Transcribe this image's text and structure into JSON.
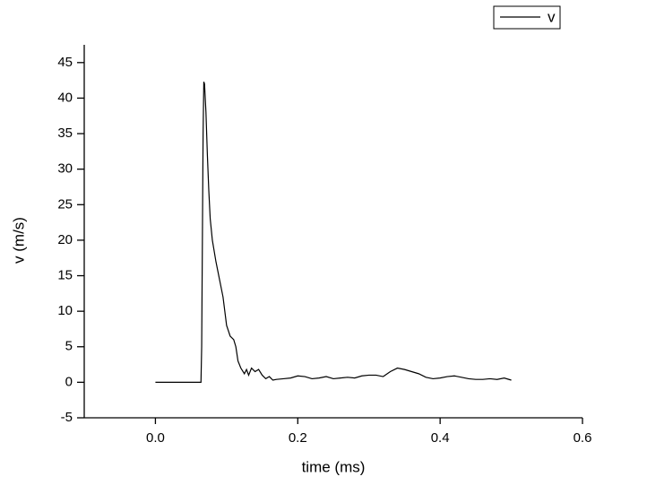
{
  "chart_data": {
    "type": "line",
    "xlabel": "time (ms)",
    "ylabel": "v (m/s)",
    "xlim": [
      -0.1,
      0.6
    ],
    "ylim": [
      -5,
      47.5
    ],
    "xticks": [
      {
        "value": 0,
        "label": "0.0"
      },
      0.2,
      0.4,
      0.6
    ],
    "yticks": [
      -5,
      0,
      5,
      10,
      15,
      20,
      25,
      30,
      35,
      40,
      45
    ],
    "legend": "top-right",
    "series": [
      {
        "name": "v",
        "color": "#000000",
        "x": [
          0,
          0.064,
          0.065,
          0.067,
          0.068,
          0.069,
          0.071,
          0.073,
          0.075,
          0.077,
          0.08,
          0.085,
          0.09,
          0.095,
          0.1,
          0.105,
          0.11,
          0.113,
          0.116,
          0.12,
          0.125,
          0.128,
          0.131,
          0.135,
          0.14,
          0.145,
          0.15,
          0.155,
          0.16,
          0.165,
          0.17,
          0.18,
          0.19,
          0.2,
          0.21,
          0.22,
          0.23,
          0.24,
          0.25,
          0.26,
          0.27,
          0.28,
          0.29,
          0.3,
          0.31,
          0.32,
          0.33,
          0.34,
          0.35,
          0.36,
          0.37,
          0.38,
          0.39,
          0.4,
          0.41,
          0.42,
          0.43,
          0.44,
          0.45,
          0.46,
          0.47,
          0.48,
          0.49,
          0.5
        ],
        "values": [
          0,
          0,
          5,
          35,
          42.3,
          42,
          38,
          32,
          27,
          23,
          20,
          17,
          14.5,
          12,
          8,
          6.5,
          6,
          5,
          3,
          2,
          1.2,
          1.8,
          1,
          2,
          1.5,
          1.8,
          1,
          0.5,
          0.8,
          0.3,
          0.4,
          0.5,
          0.6,
          0.9,
          0.8,
          0.5,
          0.6,
          0.8,
          0.5,
          0.6,
          0.7,
          0.6,
          0.9,
          1.0,
          1.0,
          0.8,
          1.5,
          2.0,
          1.8,
          1.5,
          1.2,
          0.7,
          0.5,
          0.6,
          0.8,
          0.9,
          0.7,
          0.5,
          0.4,
          0.4,
          0.5,
          0.4,
          0.6,
          0.3
        ]
      }
    ]
  }
}
